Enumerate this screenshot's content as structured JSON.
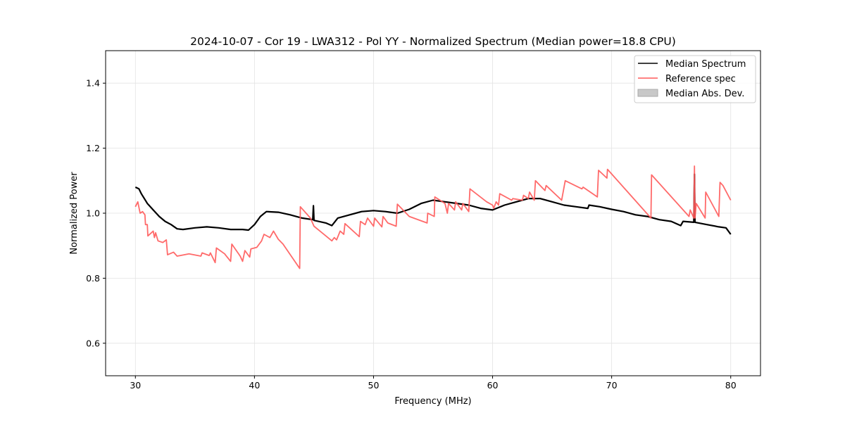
{
  "chart_data": {
    "type": "line",
    "title": "2024-10-07 - Cor 19 - LWA312 - Pol YY - Normalized Spectrum (Median power=18.8 CPU)",
    "xlabel": "Frequency (MHz)",
    "ylabel": "Normalized Power",
    "xlim": [
      27.5,
      82.5
    ],
    "ylim": [
      0.5,
      1.5
    ],
    "xticks": [
      30,
      40,
      50,
      60,
      70,
      80
    ],
    "yticks": [
      0.6,
      0.8,
      1.0,
      1.2,
      1.4
    ],
    "xtick_labels": [
      "30",
      "40",
      "50",
      "60",
      "70",
      "80"
    ],
    "ytick_labels": [
      "0.6",
      "0.8",
      "1.0",
      "1.2",
      "1.4"
    ],
    "grid": true,
    "legend_position": "top-right",
    "legend": [
      "Median Spectrum",
      "Reference spec",
      "Median Abs. Dev."
    ],
    "colors": {
      "median": "#000000",
      "reference": "#ff5a5a",
      "mad": "#c8c8c8"
    },
    "series": [
      {
        "name": "Median Spectrum",
        "points": [
          [
            30,
            1.08
          ],
          [
            30.3,
            1.075
          ],
          [
            30.5,
            1.06
          ],
          [
            31,
            1.03
          ],
          [
            31.5,
            1.01
          ],
          [
            32,
            0.99
          ],
          [
            32.5,
            0.975
          ],
          [
            33,
            0.965
          ],
          [
            33.5,
            0.952
          ],
          [
            34,
            0.95
          ],
          [
            35,
            0.955
          ],
          [
            36,
            0.958
          ],
          [
            37,
            0.955
          ],
          [
            38,
            0.95
          ],
          [
            39,
            0.95
          ],
          [
            39.5,
            0.948
          ],
          [
            40,
            0.965
          ],
          [
            40.5,
            0.99
          ],
          [
            41,
            1.005
          ],
          [
            42,
            1.003
          ],
          [
            43,
            0.995
          ],
          [
            44,
            0.985
          ],
          [
            44.9,
            0.98
          ],
          [
            44.95,
            1.023
          ],
          [
            45,
            0.978
          ],
          [
            46,
            0.97
          ],
          [
            46.5,
            0.962
          ],
          [
            47,
            0.985
          ],
          [
            48,
            0.995
          ],
          [
            49,
            1.005
          ],
          [
            50,
            1.008
          ],
          [
            51,
            1.005
          ],
          [
            52,
            1.0
          ],
          [
            53,
            1.012
          ],
          [
            54,
            1.03
          ],
          [
            55,
            1.04
          ],
          [
            56,
            1.035
          ],
          [
            57,
            1.03
          ],
          [
            58,
            1.025
          ],
          [
            59,
            1.015
          ],
          [
            60,
            1.01
          ],
          [
            61,
            1.025
          ],
          [
            62,
            1.035
          ],
          [
            63,
            1.045
          ],
          [
            64,
            1.045
          ],
          [
            65,
            1.035
          ],
          [
            66,
            1.025
          ],
          [
            67,
            1.02
          ],
          [
            68,
            1.015
          ],
          [
            68.1,
            1.025
          ],
          [
            69,
            1.02
          ],
          [
            70,
            1.012
          ],
          [
            71,
            1.005
          ],
          [
            72,
            0.995
          ],
          [
            73,
            0.99
          ],
          [
            74,
            0.98
          ],
          [
            75,
            0.975
          ],
          [
            75.8,
            0.962
          ],
          [
            76,
            0.975
          ],
          [
            76.9,
            0.972
          ],
          [
            76.95,
            1.12
          ],
          [
            77,
            0.972
          ],
          [
            78,
            0.965
          ],
          [
            79,
            0.958
          ],
          [
            79.6,
            0.955
          ],
          [
            80,
            0.935
          ]
        ]
      },
      {
        "name": "Reference spec",
        "points": [
          [
            30,
            1.02
          ],
          [
            30.2,
            1.035
          ],
          [
            30.4,
            1.0
          ],
          [
            30.6,
            1.005
          ],
          [
            30.8,
            0.995
          ],
          [
            30.85,
            0.965
          ],
          [
            31,
            0.965
          ],
          [
            31.05,
            0.93
          ],
          [
            31.5,
            0.945
          ],
          [
            31.6,
            0.925
          ],
          [
            31.7,
            0.94
          ],
          [
            31.9,
            0.915
          ],
          [
            32.3,
            0.91
          ],
          [
            32.6,
            0.918
          ],
          [
            32.7,
            0.872
          ],
          [
            33.2,
            0.88
          ],
          [
            33.5,
            0.868
          ],
          [
            34.5,
            0.875
          ],
          [
            35.5,
            0.868
          ],
          [
            35.6,
            0.878
          ],
          [
            36.2,
            0.87
          ],
          [
            36.3,
            0.878
          ],
          [
            36.7,
            0.848
          ],
          [
            36.8,
            0.893
          ],
          [
            37.5,
            0.875
          ],
          [
            37.6,
            0.87
          ],
          [
            38.0,
            0.852
          ],
          [
            38.1,
            0.905
          ],
          [
            38.8,
            0.868
          ],
          [
            39.0,
            0.852
          ],
          [
            39.2,
            0.885
          ],
          [
            39.6,
            0.865
          ],
          [
            39.7,
            0.89
          ],
          [
            40.2,
            0.895
          ],
          [
            40.6,
            0.915
          ],
          [
            40.8,
            0.935
          ],
          [
            41.3,
            0.925
          ],
          [
            41.6,
            0.945
          ],
          [
            42.0,
            0.92
          ],
          [
            42.4,
            0.905
          ],
          [
            43.8,
            0.83
          ],
          [
            43.85,
            1.02
          ],
          [
            44.7,
            0.985
          ],
          [
            45,
            0.96
          ],
          [
            45.5,
            0.945
          ],
          [
            46,
            0.93
          ],
          [
            46.5,
            0.915
          ],
          [
            46.7,
            0.925
          ],
          [
            46.9,
            0.918
          ],
          [
            47.2,
            0.945
          ],
          [
            47.5,
            0.935
          ],
          [
            47.6,
            0.968
          ],
          [
            48.8,
            0.928
          ],
          [
            48.9,
            0.975
          ],
          [
            49.3,
            0.965
          ],
          [
            49.5,
            0.985
          ],
          [
            50.0,
            0.96
          ],
          [
            50.1,
            0.985
          ],
          [
            50.7,
            0.958
          ],
          [
            50.8,
            0.99
          ],
          [
            51.2,
            0.97
          ],
          [
            51.9,
            0.96
          ],
          [
            52.0,
            1.028
          ],
          [
            53.0,
            0.99
          ],
          [
            54.5,
            0.97
          ],
          [
            54.55,
            1.0
          ],
          [
            55.1,
            0.99
          ],
          [
            55.15,
            1.05
          ],
          [
            56.0,
            1.03
          ],
          [
            56.2,
            1.0
          ],
          [
            56.3,
            1.03
          ],
          [
            56.8,
            1.01
          ],
          [
            56.9,
            1.035
          ],
          [
            57.4,
            1.01
          ],
          [
            57.5,
            1.03
          ],
          [
            58.0,
            1.005
          ],
          [
            58.1,
            1.075
          ],
          [
            59.5,
            1.035
          ],
          [
            60.0,
            1.025
          ],
          [
            60.1,
            1.015
          ],
          [
            60.3,
            1.035
          ],
          [
            60.5,
            1.025
          ],
          [
            60.6,
            1.06
          ],
          [
            61.6,
            1.04
          ],
          [
            61.7,
            1.045
          ],
          [
            62.5,
            1.04
          ],
          [
            62.6,
            1.055
          ],
          [
            63.0,
            1.045
          ],
          [
            63.1,
            1.065
          ],
          [
            63.5,
            1.04
          ],
          [
            63.6,
            1.1
          ],
          [
            64.4,
            1.07
          ],
          [
            64.5,
            1.085
          ],
          [
            65.8,
            1.04
          ],
          [
            66.1,
            1.1
          ],
          [
            67.5,
            1.075
          ],
          [
            67.6,
            1.08
          ],
          [
            68.8,
            1.05
          ],
          [
            68.9,
            1.132
          ],
          [
            69.6,
            1.108
          ],
          [
            69.65,
            1.135
          ],
          [
            73.3,
            0.985
          ],
          [
            73.35,
            1.118
          ],
          [
            76.5,
            0.99
          ],
          [
            76.6,
            1.01
          ],
          [
            76.9,
            0.985
          ],
          [
            76.95,
            1.145
          ],
          [
            77.0,
            0.985
          ],
          [
            77.1,
            1.03
          ],
          [
            77.85,
            0.985
          ],
          [
            77.9,
            1.065
          ],
          [
            79.0,
            0.99
          ],
          [
            79.1,
            1.095
          ],
          [
            79.35,
            1.085
          ],
          [
            80,
            1.04
          ]
        ]
      }
    ]
  }
}
